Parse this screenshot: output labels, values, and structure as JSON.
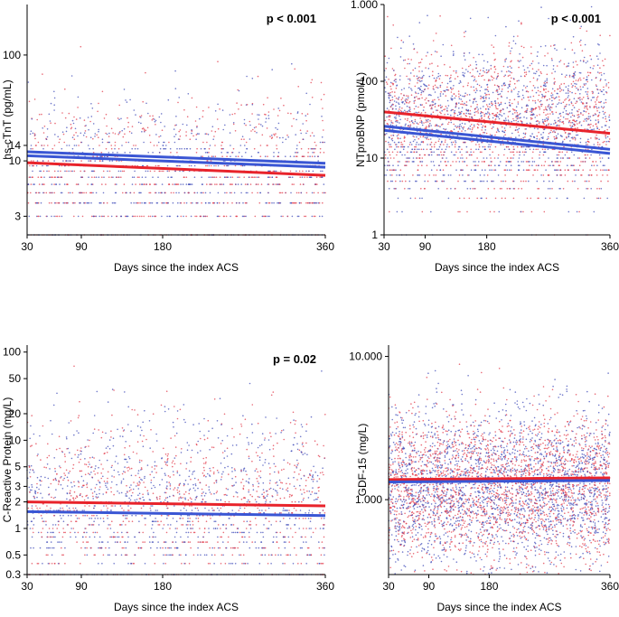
{
  "figure": {
    "colors": {
      "red": "#e8232b",
      "blue": "#3a56d4",
      "dot_red": "#e23a4a",
      "dot_blue": "#3f4bb8",
      "axis": "#000000"
    }
  },
  "chart_data": [
    {
      "id": "hs-ctnt",
      "type": "scatter",
      "yscale": "log",
      "xlabel": "Days since the index ACS",
      "ylabel": "hs-cTnT (pg/mL)",
      "annotation": "p < 0.001",
      "xlim": [
        30,
        360
      ],
      "ylim": [
        2,
        300
      ],
      "x_ticks": [
        30,
        90,
        180,
        360
      ],
      "x_tick_labels": [
        "30",
        "90",
        "180",
        "360"
      ],
      "y_ticks": [
        3,
        10,
        14,
        100
      ],
      "y_tick_labels": [
        "3",
        "10",
        "14",
        "100"
      ],
      "series": [
        {
          "name": "red group",
          "color": "red",
          "fit": {
            "x": [
              30,
              360
            ],
            "y": [
              9.6,
              7.3
            ]
          }
        },
        {
          "name": "blue group",
          "color": "blue",
          "fit": {
            "x": [
              30,
              360
            ],
            "y": [
              12.2,
              9.5
            ]
          }
        },
        {
          "name": "blue group lower bound",
          "color": "blue",
          "fit": {
            "x": [
              30,
              360
            ],
            "y": [
              11.2,
              8.7
            ]
          }
        }
      ],
      "points": {
        "count": 1500,
        "center": 8,
        "spread": 0.85,
        "discrete": true,
        "dense_below": 16
      }
    },
    {
      "id": "ntprobnp",
      "type": "scatter",
      "yscale": "log",
      "xlabel": "Days since the index ACS",
      "ylabel": "NTproBNP (pmol/L)",
      "annotation": "p < 0.001",
      "xlim": [
        30,
        360
      ],
      "ylim": [
        1,
        1000
      ],
      "x_ticks": [
        30,
        90,
        180,
        360
      ],
      "x_tick_labels": [
        "30",
        "90",
        "180",
        "360"
      ],
      "y_ticks": [
        1,
        10,
        100,
        1000
      ],
      "y_tick_labels": [
        "1",
        "10",
        "100",
        "1.000"
      ],
      "series": [
        {
          "name": "red group",
          "color": "red",
          "fit": {
            "x": [
              30,
              360
            ],
            "y": [
              40,
              21
            ]
          }
        },
        {
          "name": "blue group",
          "color": "blue",
          "fit": {
            "x": [
              30,
              360
            ],
            "y": [
              26,
              13
            ]
          }
        },
        {
          "name": "blue group lower bound",
          "color": "blue",
          "fit": {
            "x": [
              30,
              360
            ],
            "y": [
              23,
              11.5
            ]
          }
        }
      ],
      "points": {
        "count": 2600,
        "center": 30,
        "spread": 1.1,
        "discrete": true,
        "dense_below": 16
      }
    },
    {
      "id": "crp",
      "type": "scatter",
      "yscale": "log",
      "xlabel": "Days since the index ACS",
      "ylabel": "C-Reactive Protein (mg/L)",
      "annotation": "p = 0.02",
      "xlim": [
        30,
        360
      ],
      "ylim": [
        0.3,
        120
      ],
      "x_ticks": [
        30,
        90,
        180,
        360
      ],
      "x_tick_labels": [
        "30",
        "90",
        "180",
        "360"
      ],
      "y_ticks": [
        0.3,
        0.5,
        1,
        2,
        3,
        5,
        10,
        20,
        50,
        100
      ],
      "y_tick_labels": [
        "0.3",
        "0.5",
        "1",
        "2",
        "3",
        "5",
        "10",
        "20",
        "50",
        "100"
      ],
      "series": [
        {
          "name": "red group",
          "color": "red",
          "fit": {
            "x": [
              30,
              360
            ],
            "y": [
              2.0,
              1.8
            ]
          }
        },
        {
          "name": "blue group",
          "color": "blue",
          "fit": {
            "x": [
              30,
              360
            ],
            "y": [
              1.55,
              1.4
            ]
          }
        }
      ],
      "points": {
        "count": 1900,
        "center": 1.9,
        "spread": 1.15,
        "discrete": true,
        "dense_below": 2.1
      }
    },
    {
      "id": "gdf-15",
      "type": "scatter",
      "yscale": "log",
      "xlabel": "Days since the index ACS",
      "ylabel": "GDF-15 (mg/L)",
      "annotation": "",
      "xlim": [
        30,
        360
      ],
      "ylim": [
        300,
        12000
      ],
      "x_ticks": [
        30,
        90,
        180,
        360
      ],
      "x_tick_labels": [
        "30",
        "90",
        "180",
        "360"
      ],
      "y_ticks": [
        1000,
        10000
      ],
      "y_tick_labels": [
        "1.000",
        "10.000"
      ],
      "series": [
        {
          "name": "red group",
          "color": "red",
          "fit": {
            "x": [
              30,
              360
            ],
            "y": [
              1380,
              1420
            ]
          }
        },
        {
          "name": "blue group",
          "color": "blue",
          "fit": {
            "x": [
              30,
              360
            ],
            "y": [
              1330,
              1360
            ]
          }
        }
      ],
      "points": {
        "count": 4200,
        "center": 1200,
        "spread": 0.6,
        "discrete": false,
        "dense_below": 0
      }
    }
  ]
}
